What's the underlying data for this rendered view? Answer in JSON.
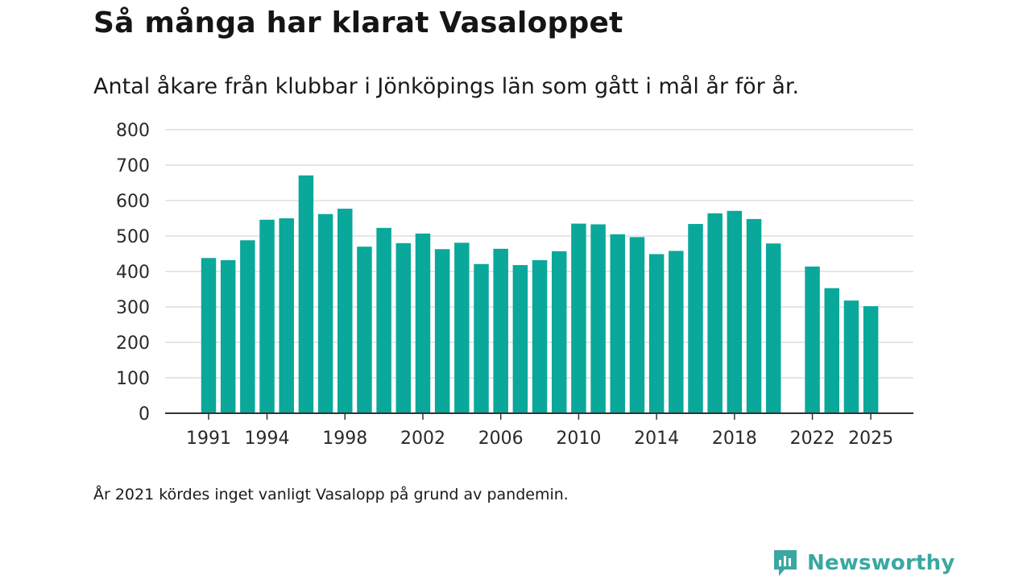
{
  "header": {
    "title": "Så många har klarat Vasaloppet",
    "subtitle": "Antal åkare från klubbar i Jönköpings län som gått i mål år för år."
  },
  "footer": {
    "note": "År 2021 kördes inget vanligt Vasalopp på grund av pandemin.",
    "brand": "Newsworthy"
  },
  "colors": {
    "bar": "#0aa89a",
    "grid": "#dddddd",
    "axis": "#333333",
    "brand": "#3aa8a0"
  },
  "chart_data": {
    "type": "bar",
    "title": "Så många har klarat Vasaloppet",
    "subtitle": "Antal åkare från klubbar i Jönköpings län som gått i mål år för år.",
    "xlabel": "",
    "ylabel": "",
    "ylim": [
      0,
      800
    ],
    "yticks": [
      0,
      100,
      200,
      300,
      400,
      500,
      600,
      700,
      800
    ],
    "xticks": [
      "1991",
      "1994",
      "1998",
      "2002",
      "2006",
      "2010",
      "2014",
      "2018",
      "2022",
      "2025"
    ],
    "grid": true,
    "categories": [
      "1991",
      "1992",
      "1993",
      "1994",
      "1995",
      "1996",
      "1997",
      "1998",
      "1999",
      "2000",
      "2001",
      "2002",
      "2003",
      "2004",
      "2005",
      "2006",
      "2007",
      "2008",
      "2009",
      "2010",
      "2011",
      "2012",
      "2013",
      "2014",
      "2015",
      "2016",
      "2017",
      "2018",
      "2019",
      "2020",
      "2021",
      "2022",
      "2023",
      "2024",
      "2025"
    ],
    "values": [
      438,
      432,
      488,
      546,
      550,
      671,
      562,
      577,
      470,
      523,
      480,
      507,
      463,
      481,
      421,
      464,
      418,
      432,
      457,
      535,
      533,
      505,
      497,
      449,
      458,
      534,
      564,
      571,
      548,
      479,
      null,
      414,
      353,
      318,
      302
    ]
  }
}
